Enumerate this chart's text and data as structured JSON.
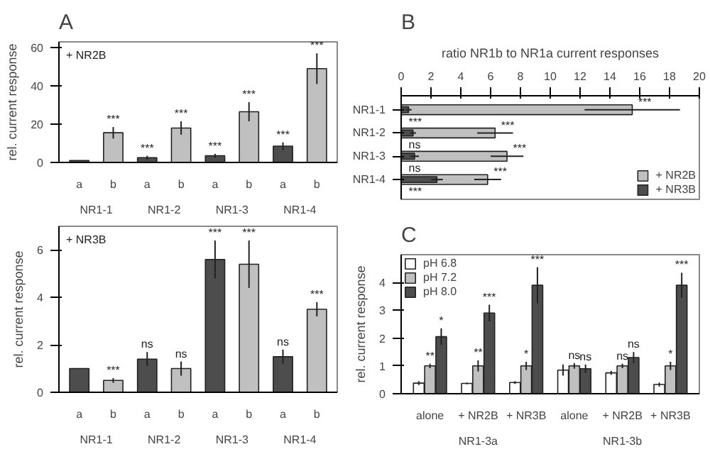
{
  "chart_data": [
    {
      "type": "bar",
      "title": "A",
      "subtitle": "+ NR2B",
      "ylabel": "rel. current response",
      "categories": [
        "a",
        "b",
        "a",
        "b",
        "a",
        "b",
        "a",
        "b"
      ],
      "values": [
        1,
        15.5,
        2.5,
        18,
        3.5,
        26.5,
        8.5,
        49
      ],
      "errors": [
        null,
        3,
        1,
        3.5,
        1,
        5,
        2,
        8
      ],
      "colors": [
        "#4d4d4d",
        "#c0c0c0",
        "#4d4d4d",
        "#c0c0c0",
        "#4d4d4d",
        "#c0c0c0",
        "#4d4d4d",
        "#c0c0c0"
      ],
      "value_labels": [
        null,
        "***",
        "***",
        "***",
        "***",
        "***",
        "***",
        "***"
      ],
      "annotations": [
        "NR1-1",
        "NR1-2",
        "NR1-3",
        "NR1-4"
      ],
      "ylim": [
        0,
        63
      ],
      "yticks": [
        0,
        20,
        40,
        60
      ],
      "grid": false
    },
    {
      "type": "bar",
      "subtitle": "+ NR3B",
      "ylabel": "rel. current response",
      "categories": [
        "a",
        "b",
        "a",
        "b",
        "a",
        "b",
        "a",
        "b"
      ],
      "values": [
        1,
        0.5,
        1.4,
        1,
        5.6,
        5.4,
        1.5,
        3.5
      ],
      "errors": [
        null,
        0.1,
        0.3,
        0.3,
        0.8,
        1,
        0.3,
        0.3
      ],
      "colors": [
        "#4d4d4d",
        "#c0c0c0",
        "#4d4d4d",
        "#c0c0c0",
        "#4d4d4d",
        "#c0c0c0",
        "#4d4d4d",
        "#c0c0c0"
      ],
      "value_labels": [
        null,
        "***",
        "ns",
        "ns",
        "***",
        "***",
        "ns",
        "***"
      ],
      "annotations": [
        "NR1-1",
        "NR1-2",
        "NR1-3",
        "NR1-4"
      ],
      "ylim": [
        0,
        7
      ],
      "yticks": [
        0,
        2,
        4,
        6
      ],
      "grid": false
    },
    {
      "type": "bar",
      "title": "B",
      "orientation": "horizontal",
      "xlabel": "ratio NR1b to NR1a current responses",
      "categories": [
        "NR1-1",
        "NR1-2",
        "NR1-3",
        "NR1-4"
      ],
      "series": [
        {
          "name": "+ NR2B",
          "color": "#c0c0c0",
          "values": [
            15.5,
            6.3,
            7.1,
            5.8
          ],
          "errors": [
            3.2,
            1.2,
            1.1,
            0.9
          ],
          "value_labels": [
            "***",
            "***",
            "***",
            "***"
          ]
        },
        {
          "name": "+ NR3B",
          "color": "#4d4d4d",
          "values": [
            0.5,
            0.8,
            0.9,
            2.4
          ],
          "errors": [
            0.2,
            0.2,
            0.3,
            0.4
          ],
          "value_labels": [
            "***",
            "ns",
            "ns",
            "***"
          ]
        }
      ],
      "xlim": [
        0,
        20
      ],
      "xticks": [
        0,
        2,
        4,
        6,
        8,
        10,
        12,
        14,
        16,
        18,
        20
      ],
      "legend": "bottom right",
      "grid": false
    },
    {
      "type": "bar",
      "title": "C",
      "ylabel": "rel. current response",
      "categories": [
        "alone",
        "+ NR2B",
        "+ NR3B",
        "alone",
        "+ NR2B",
        "+ NR3B"
      ],
      "series": [
        {
          "name": "pH 6.8",
          "color": "#ffffff",
          "values": [
            0.38,
            0.37,
            0.4,
            0.85,
            0.75,
            0.33
          ],
          "errors": [
            0.07,
            0.03,
            0.05,
            0.2,
            0.07,
            0.07
          ]
        },
        {
          "name": "pH 7.2",
          "color": "#c0c0c0",
          "values": [
            1,
            1,
            1,
            1,
            1,
            1
          ],
          "errors": [
            0.08,
            0.2,
            0.15,
            0.1,
            0.08,
            0.15
          ],
          "value_labels": [
            "**",
            "**",
            "*",
            "ns",
            "ns",
            "*"
          ]
        },
        {
          "name": "pH 8.0",
          "color": "#4d4d4d",
          "values": [
            2.05,
            2.9,
            3.9,
            0.9,
            1.3,
            3.9
          ],
          "errors": [
            0.3,
            0.3,
            0.65,
            0.15,
            0.2,
            0.45
          ],
          "value_labels": [
            "*",
            "***",
            "***",
            "ns",
            "ns",
            "***"
          ]
        }
      ],
      "annotations": [
        "NR1-3a",
        "NR1-3b"
      ],
      "ylim": [
        0,
        5
      ],
      "yticks": [
        0,
        1,
        2,
        3,
        4
      ],
      "legend": "top left",
      "grid": false
    }
  ]
}
